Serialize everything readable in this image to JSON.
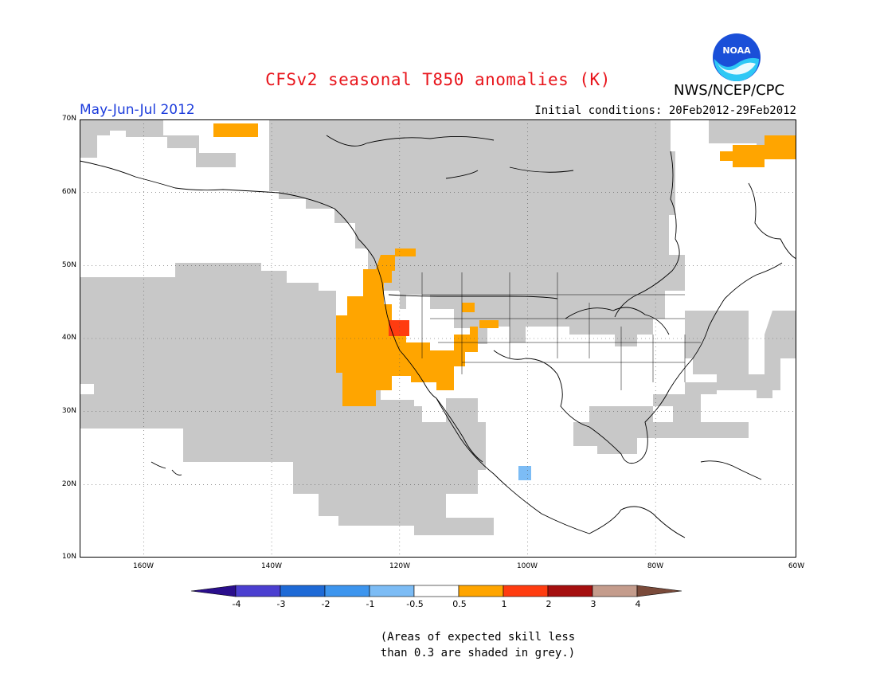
{
  "header": {
    "title": "CFSv2 seasonal T850 anomalies (K)",
    "agency": "NWS/NCEP/CPC",
    "logo_text": "NOAA",
    "period": "May-Jun-Jul 2012",
    "init_label": "Initial conditions: ",
    "init_range": "20Feb2012-29Feb2012"
  },
  "map": {
    "projection": "equirectangular",
    "lon_range": [
      -172,
      -60
    ],
    "lat_range": [
      10,
      70
    ],
    "lat_labels": [
      "70N",
      "60N",
      "50N",
      "40N",
      "30N",
      "20N",
      "10N"
    ],
    "lon_labels": [
      "160W",
      "140W",
      "120W",
      "100W",
      "80W",
      "60W"
    ],
    "grid": "dotted",
    "skill_mask_color": "#c8c8c8"
  },
  "colorbar": {
    "tick_labels": [
      "-4",
      "-3",
      "-2",
      "-1",
      "-0.5",
      "0.5",
      "1",
      "2",
      "3",
      "4"
    ],
    "colors": [
      "#2a0e8c",
      "#4b3fd0",
      "#1e6ad6",
      "#3d95ee",
      "#7cbcf5",
      "#ffffff",
      "#ffa500",
      "#ff3c10",
      "#a50f0f",
      "#c49c8c",
      "#7a4a3a"
    ]
  },
  "note": {
    "line1": "(Areas of expected skill less",
    "line2": "than 0.3 are shaded in grey.)"
  }
}
